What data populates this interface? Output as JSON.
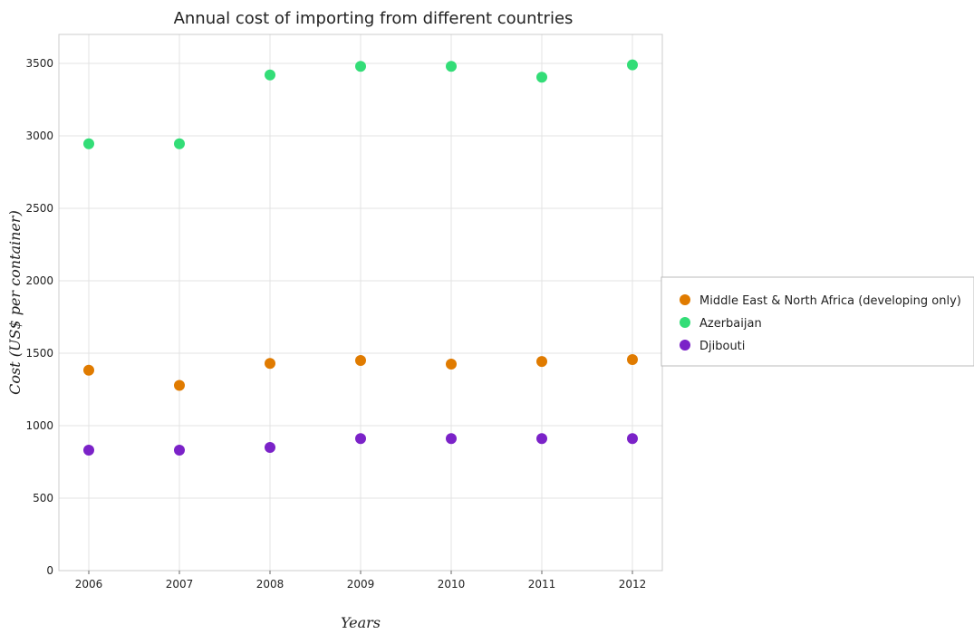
{
  "chart_data": {
    "type": "scatter",
    "title": "Annual cost of importing from different countries",
    "xlabel": "Years",
    "ylabel": "Cost (US$ per container)",
    "x": [
      "2006",
      "2007",
      "2008",
      "2009",
      "2010",
      "2011",
      "2012"
    ],
    "ylim": [
      0,
      3700
    ],
    "yticks": [
      0,
      500,
      1000,
      1500,
      2000,
      2500,
      3000,
      3500
    ],
    "grid": true,
    "legend_position": "right",
    "series": [
      {
        "name": "Middle East & North Africa (developing only)",
        "color": "#e07b00",
        "values": [
          1383,
          1278,
          1430,
          1450,
          1425,
          1443,
          1456
        ]
      },
      {
        "name": "Azerbaijan",
        "color": "#33dd77",
        "values": [
          2945,
          2945,
          3420,
          3480,
          3480,
          3405,
          3490
        ]
      },
      {
        "name": "Djibouti",
        "color": "#7b22c8",
        "values": [
          831,
          831,
          850,
          911,
          911,
          911,
          911
        ]
      }
    ]
  }
}
